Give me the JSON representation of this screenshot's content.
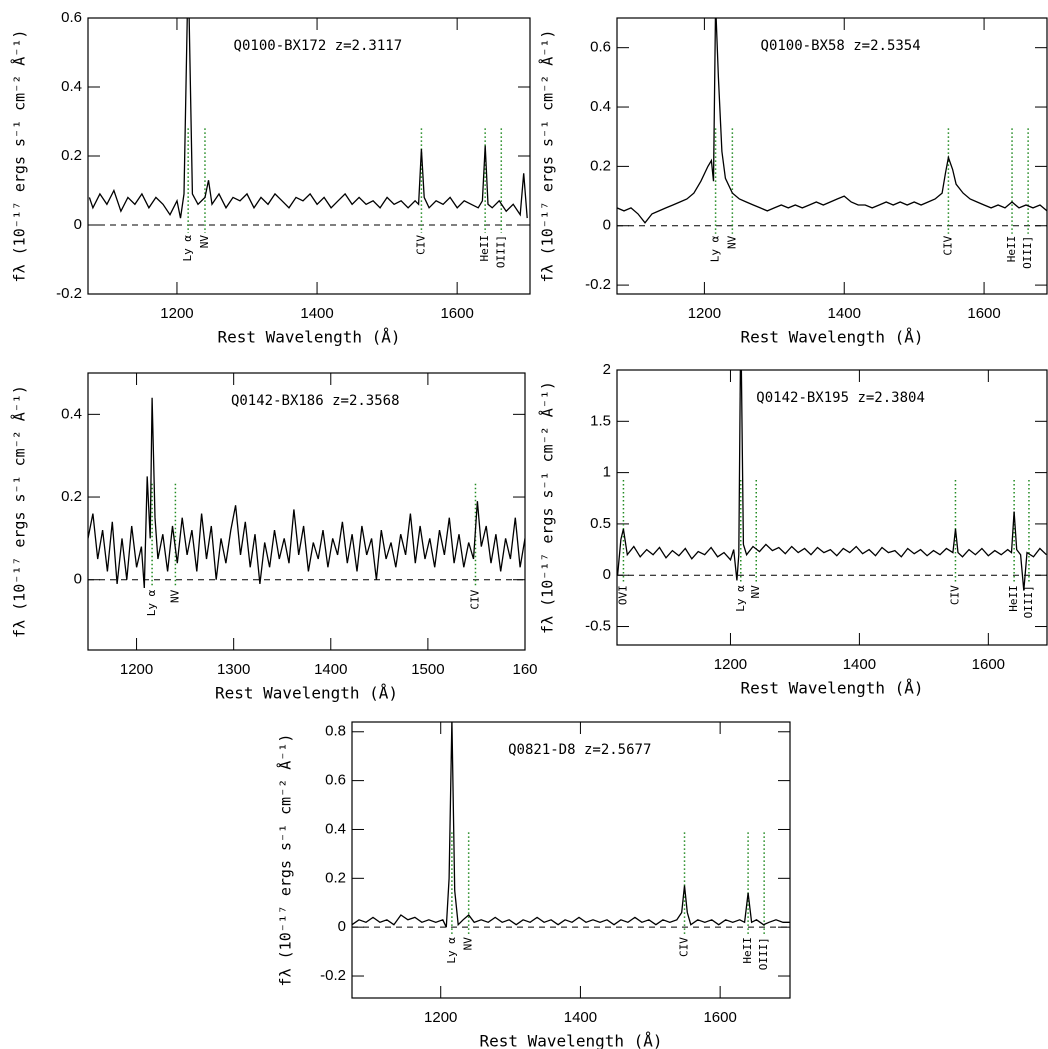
{
  "chart_data": [
    {
      "type": "line",
      "title": "Q0100-BX172 z=2.3117",
      "xlabel": "Rest Wavelength (Å)",
      "ylabel": "fλ (10⁻¹⁷ ergs s⁻¹ cm⁻² Å⁻¹)",
      "color": "#000000",
      "line_color": "#228b22",
      "xlim": [
        1073,
        1704
      ],
      "ylim": [
        -0.2,
        0.6
      ],
      "xticks": [
        1200,
        1400,
        1600
      ],
      "yticks": [
        -0.2,
        0,
        0.2,
        0.4,
        0.6
      ],
      "lines": [
        {
          "label": "Ly α",
          "x": 1216
        },
        {
          "label": "NV",
          "x": 1240
        },
        {
          "label": "CIV",
          "x": 1549
        },
        {
          "label": "HeII",
          "x": 1640
        },
        {
          "label": "OIII]",
          "x": 1663
        }
      ],
      "x": [
        1075,
        1080,
        1090,
        1100,
        1110,
        1120,
        1130,
        1140,
        1150,
        1160,
        1170,
        1180,
        1190,
        1200,
        1205,
        1210,
        1216,
        1222,
        1230,
        1240,
        1245,
        1250,
        1260,
        1270,
        1280,
        1290,
        1300,
        1310,
        1320,
        1330,
        1340,
        1350,
        1360,
        1370,
        1380,
        1390,
        1400,
        1410,
        1420,
        1430,
        1440,
        1450,
        1460,
        1470,
        1480,
        1490,
        1500,
        1510,
        1520,
        1530,
        1540,
        1545,
        1549,
        1553,
        1560,
        1570,
        1580,
        1590,
        1600,
        1610,
        1620,
        1630,
        1636,
        1640,
        1644,
        1650,
        1660,
        1670,
        1680,
        1690,
        1695,
        1700
      ],
      "values": [
        0.08,
        0.05,
        0.09,
        0.06,
        0.1,
        0.04,
        0.08,
        0.06,
        0.09,
        0.05,
        0.08,
        0.06,
        0.03,
        0.07,
        0.02,
        0.09,
        0.75,
        0.09,
        0.06,
        0.08,
        0.13,
        0.06,
        0.09,
        0.05,
        0.08,
        0.07,
        0.09,
        0.05,
        0.08,
        0.06,
        0.09,
        0.07,
        0.05,
        0.08,
        0.07,
        0.09,
        0.06,
        0.08,
        0.05,
        0.07,
        0.09,
        0.06,
        0.08,
        0.06,
        0.07,
        0.05,
        0.08,
        0.06,
        0.07,
        0.05,
        0.07,
        0.06,
        0.22,
        0.08,
        0.05,
        0.07,
        0.06,
        0.08,
        0.05,
        0.07,
        0.06,
        0.05,
        0.07,
        0.23,
        0.06,
        0.05,
        0.07,
        0.04,
        0.06,
        0.03,
        0.15,
        0.02
      ]
    },
    {
      "type": "line",
      "title": "Q0100-BX58 z=2.5354",
      "xlabel": "Rest Wavelength (Å)",
      "ylabel": "fλ (10⁻¹⁷ ergs s⁻¹ cm⁻² Å⁻¹)",
      "color": "#000000",
      "line_color": "#228b22",
      "xlim": [
        1075,
        1690
      ],
      "ylim": [
        -0.23,
        0.7
      ],
      "xticks": [
        1200,
        1400,
        1600
      ],
      "yticks": [
        -0.2,
        0,
        0.2,
        0.4,
        0.6
      ],
      "lines": [
        {
          "label": "Ly α",
          "x": 1216
        },
        {
          "label": "NV",
          "x": 1240
        },
        {
          "label": "CIV",
          "x": 1549
        },
        {
          "label": "HeII",
          "x": 1640
        },
        {
          "label": "OIII]",
          "x": 1663
        }
      ],
      "x": [
        1075,
        1085,
        1095,
        1105,
        1115,
        1125,
        1135,
        1145,
        1155,
        1165,
        1175,
        1185,
        1195,
        1205,
        1210,
        1213,
        1216,
        1220,
        1225,
        1230,
        1240,
        1250,
        1260,
        1270,
        1280,
        1290,
        1300,
        1310,
        1320,
        1330,
        1340,
        1350,
        1360,
        1370,
        1380,
        1390,
        1400,
        1410,
        1420,
        1430,
        1440,
        1450,
        1460,
        1470,
        1480,
        1490,
        1500,
        1510,
        1520,
        1530,
        1540,
        1545,
        1549,
        1555,
        1560,
        1570,
        1580,
        1590,
        1600,
        1610,
        1620,
        1630,
        1640,
        1650,
        1660,
        1670,
        1680,
        1690
      ],
      "values": [
        0.06,
        0.05,
        0.06,
        0.04,
        0.01,
        0.04,
        0.05,
        0.06,
        0.07,
        0.08,
        0.09,
        0.11,
        0.15,
        0.2,
        0.22,
        0.15,
        0.75,
        0.5,
        0.25,
        0.16,
        0.11,
        0.09,
        0.08,
        0.07,
        0.06,
        0.05,
        0.06,
        0.07,
        0.06,
        0.07,
        0.06,
        0.07,
        0.08,
        0.07,
        0.08,
        0.09,
        0.1,
        0.08,
        0.07,
        0.07,
        0.06,
        0.07,
        0.08,
        0.07,
        0.08,
        0.07,
        0.08,
        0.07,
        0.08,
        0.09,
        0.11,
        0.18,
        0.23,
        0.19,
        0.14,
        0.11,
        0.09,
        0.08,
        0.07,
        0.06,
        0.07,
        0.06,
        0.08,
        0.06,
        0.07,
        0.06,
        0.07,
        0.05
      ]
    },
    {
      "type": "line",
      "title": "Q0142-BX186 z=2.3568",
      "xlabel": "Rest Wavelength (Å)",
      "ylabel": "fλ (10⁻¹⁷ ergs s⁻¹ cm⁻² Å⁻¹)",
      "color": "#000000",
      "line_color": "#228b22",
      "xlim": [
        1150,
        1600
      ],
      "ylim": [
        -0.17,
        0.5
      ],
      "xticks": [
        1200,
        1300,
        1400,
        1500,
        {
          "value": 1600,
          "label": "160"
        }
      ],
      "yticks": [
        0,
        0.2,
        0.4
      ],
      "lines": [
        {
          "label": "Ly α",
          "x": 1216
        },
        {
          "label": "NV",
          "x": 1240
        },
        {
          "label": "CIV",
          "x": 1549
        }
      ],
      "x": [
        1150,
        1155,
        1160,
        1165,
        1170,
        1175,
        1180,
        1185,
        1190,
        1195,
        1200,
        1205,
        1208,
        1211,
        1214,
        1216,
        1219,
        1222,
        1227,
        1232,
        1237,
        1242,
        1247,
        1252,
        1257,
        1262,
        1267,
        1272,
        1277,
        1282,
        1287,
        1292,
        1297,
        1302,
        1307,
        1312,
        1317,
        1322,
        1327,
        1332,
        1337,
        1342,
        1347,
        1352,
        1357,
        1362,
        1367,
        1372,
        1377,
        1382,
        1387,
        1392,
        1397,
        1402,
        1407,
        1412,
        1417,
        1422,
        1427,
        1432,
        1437,
        1442,
        1447,
        1452,
        1457,
        1462,
        1467,
        1472,
        1477,
        1482,
        1487,
        1492,
        1497,
        1502,
        1507,
        1512,
        1517,
        1522,
        1527,
        1532,
        1537,
        1542,
        1547,
        1551,
        1555,
        1560,
        1565,
        1570,
        1575,
        1580,
        1585,
        1590,
        1595,
        1600
      ],
      "values": [
        0.1,
        0.16,
        0.05,
        0.12,
        0.02,
        0.14,
        -0.01,
        0.1,
        0.0,
        0.13,
        0.03,
        0.08,
        -0.02,
        0.25,
        0.1,
        0.44,
        0.15,
        0.05,
        0.11,
        0.02,
        0.13,
        0.04,
        0.15,
        0.06,
        0.12,
        0.02,
        0.16,
        0.05,
        0.13,
        0.0,
        0.1,
        0.04,
        0.12,
        0.18,
        0.06,
        0.14,
        0.03,
        0.11,
        -0.01,
        0.09,
        0.03,
        0.12,
        0.05,
        0.1,
        0.04,
        0.17,
        0.06,
        0.13,
        0.02,
        0.09,
        0.05,
        0.12,
        0.03,
        0.1,
        0.06,
        0.14,
        0.04,
        0.11,
        0.02,
        0.13,
        0.06,
        0.1,
        0.0,
        0.12,
        0.05,
        0.09,
        0.03,
        0.11,
        0.06,
        0.16,
        0.04,
        0.13,
        0.05,
        0.1,
        0.03,
        0.12,
        0.06,
        0.15,
        0.04,
        0.11,
        0.03,
        0.09,
        0.05,
        0.19,
        0.08,
        0.13,
        0.04,
        0.11,
        0.02,
        0.1,
        0.05,
        0.15,
        0.03,
        0.1
      ]
    },
    {
      "type": "line",
      "title": "Q0142-BX195 z=2.3804",
      "xlabel": "Rest Wavelength (Å)",
      "ylabel": "fλ (10⁻¹⁷ ergs s⁻¹ cm⁻² Å⁻¹)",
      "color": "#000000",
      "line_color": "#228b22",
      "xlim": [
        1024,
        1691
      ],
      "ylim": [
        -0.68,
        2
      ],
      "xticks": [
        1200,
        1400,
        1600
      ],
      "yticks": [
        -0.5,
        0,
        0.5,
        1,
        1.5,
        2
      ],
      "lines": [
        {
          "label": "OVI",
          "x": 1034
        },
        {
          "label": "Ly α",
          "x": 1216
        },
        {
          "label": "NV",
          "x": 1240
        },
        {
          "label": "CIV",
          "x": 1549
        },
        {
          "label": "HeII",
          "x": 1640
        },
        {
          "label": "OIII]",
          "x": 1663
        }
      ],
      "x": [
        1025,
        1030,
        1034,
        1040,
        1050,
        1060,
        1070,
        1080,
        1090,
        1100,
        1110,
        1120,
        1130,
        1140,
        1150,
        1160,
        1170,
        1180,
        1190,
        1200,
        1205,
        1210,
        1213,
        1216,
        1220,
        1225,
        1235,
        1245,
        1255,
        1265,
        1275,
        1285,
        1295,
        1305,
        1315,
        1325,
        1335,
        1345,
        1355,
        1365,
        1375,
        1385,
        1395,
        1405,
        1415,
        1425,
        1435,
        1445,
        1455,
        1465,
        1475,
        1485,
        1495,
        1505,
        1515,
        1525,
        1535,
        1545,
        1549,
        1553,
        1560,
        1570,
        1580,
        1590,
        1600,
        1610,
        1620,
        1630,
        1636,
        1640,
        1644,
        1650,
        1655,
        1660,
        1670,
        1680,
        1690
      ],
      "values": [
        0.0,
        0.35,
        0.45,
        0.2,
        0.28,
        0.18,
        0.25,
        0.2,
        0.27,
        0.17,
        0.24,
        0.19,
        0.26,
        0.16,
        0.23,
        0.2,
        0.27,
        0.18,
        0.22,
        0.15,
        0.25,
        -0.05,
        0.2,
        2.5,
        0.3,
        0.2,
        0.28,
        0.23,
        0.3,
        0.24,
        0.27,
        0.21,
        0.28,
        0.22,
        0.26,
        0.2,
        0.27,
        0.22,
        0.25,
        0.19,
        0.26,
        0.22,
        0.28,
        0.21,
        0.25,
        0.19,
        0.27,
        0.22,
        0.24,
        0.18,
        0.26,
        0.21,
        0.25,
        0.19,
        0.24,
        0.2,
        0.26,
        0.22,
        0.45,
        0.22,
        0.18,
        0.25,
        0.2,
        0.26,
        0.19,
        0.24,
        0.2,
        0.25,
        0.22,
        0.62,
        0.25,
        0.2,
        -0.15,
        0.22,
        0.18,
        0.26,
        0.2
      ]
    },
    {
      "type": "line",
      "title": "Q0821-D8 z=2.5677",
      "xlabel": "Rest Wavelength (Å)",
      "ylabel": "fλ (10⁻¹⁷ ergs s⁻¹ cm⁻² Å⁻¹)",
      "color": "#000000",
      "line_color": "#228b22",
      "xlim": [
        1073,
        1700
      ],
      "ylim": [
        -0.29,
        0.84
      ],
      "xticks": [
        1200,
        1400,
        1600
      ],
      "yticks": [
        -0.2,
        0,
        0.2,
        0.4,
        0.6,
        0.8
      ],
      "lines": [
        {
          "label": "Ly α",
          "x": 1216
        },
        {
          "label": "NV",
          "x": 1240
        },
        {
          "label": "CIV",
          "x": 1549
        },
        {
          "label": "HeII",
          "x": 1640
        },
        {
          "label": "OIII]",
          "x": 1663
        }
      ],
      "x": [
        1073,
        1083,
        1093,
        1103,
        1113,
        1123,
        1133,
        1143,
        1153,
        1163,
        1173,
        1183,
        1193,
        1203,
        1208,
        1212,
        1216,
        1220,
        1225,
        1232,
        1240,
        1248,
        1258,
        1268,
        1278,
        1288,
        1298,
        1308,
        1318,
        1328,
        1338,
        1348,
        1358,
        1368,
        1378,
        1388,
        1398,
        1408,
        1418,
        1428,
        1438,
        1448,
        1458,
        1468,
        1478,
        1488,
        1498,
        1508,
        1518,
        1528,
        1538,
        1545,
        1549,
        1553,
        1558,
        1568,
        1578,
        1588,
        1598,
        1608,
        1618,
        1628,
        1635,
        1640,
        1645,
        1652,
        1662,
        1670,
        1680,
        1690,
        1700
      ],
      "values": [
        0.01,
        0.03,
        0.02,
        0.04,
        0.02,
        0.03,
        0.01,
        0.05,
        0.03,
        0.04,
        0.02,
        0.03,
        0.02,
        0.03,
        0.0,
        0.2,
        0.85,
        0.15,
        0.01,
        0.03,
        0.05,
        0.02,
        0.03,
        0.02,
        0.04,
        0.02,
        0.03,
        0.01,
        0.03,
        0.02,
        0.04,
        0.02,
        0.03,
        0.01,
        0.03,
        0.02,
        0.04,
        0.02,
        0.03,
        0.02,
        0.03,
        0.01,
        0.03,
        0.02,
        0.04,
        0.02,
        0.03,
        0.01,
        0.03,
        0.02,
        0.03,
        0.06,
        0.17,
        0.06,
        0.01,
        0.03,
        0.02,
        0.03,
        0.01,
        0.03,
        0.02,
        0.03,
        0.02,
        0.14,
        0.02,
        0.03,
        0.01,
        0.02,
        0.03,
        0.02,
        0.02
      ]
    }
  ]
}
